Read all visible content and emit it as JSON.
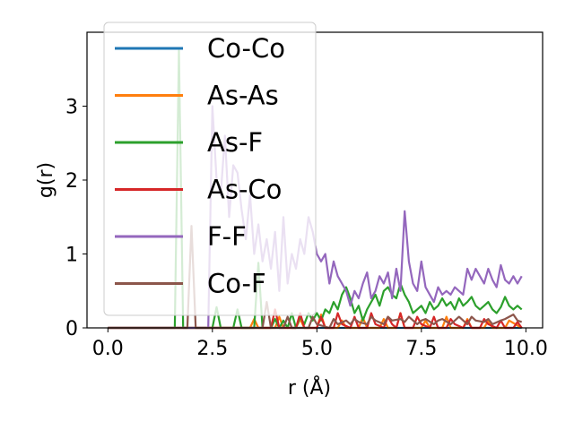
{
  "chart_data": {
    "type": "line",
    "xlabel": "r (Å)",
    "ylabel": "g(r)",
    "xlim": [
      -0.5,
      10.4
    ],
    "ylim": [
      0,
      4.0
    ],
    "x_ticks": [
      "0.0",
      "2.5",
      "5.0",
      "7.5",
      "10.0"
    ],
    "y_ticks": [
      "0",
      "1",
      "2",
      "3"
    ],
    "grid": false,
    "legend_position": "upper-left",
    "series": [
      {
        "name": "Co-Co",
        "color": "#1f77b4",
        "x": [
          0.0,
          9.9
        ],
        "y": [
          0.0,
          0.0
        ]
      },
      {
        "name": "As-As",
        "color": "#ff7f0e",
        "x": [
          0.0,
          3.4,
          3.5,
          3.6,
          4.0,
          4.1,
          4.2,
          4.5,
          4.6,
          4.7,
          5.0,
          5.1,
          5.2,
          5.5,
          5.6,
          5.7,
          6.0,
          6.1,
          6.2,
          6.5,
          6.6,
          6.7,
          6.9,
          7.0,
          7.1,
          7.5,
          7.6,
          7.7,
          8.0,
          8.1,
          8.2,
          8.5,
          8.6,
          8.7,
          9.0,
          9.1,
          9.2,
          9.5,
          9.6,
          9.9
        ],
        "y": [
          0.0,
          0.0,
          0.12,
          0.0,
          0.0,
          0.15,
          0.0,
          0.0,
          0.12,
          0.0,
          0.0,
          0.18,
          0.0,
          0.0,
          0.1,
          0.0,
          0.0,
          0.14,
          0.0,
          0.0,
          0.12,
          0.0,
          0.0,
          0.2,
          0.0,
          0.0,
          0.1,
          0.0,
          0.0,
          0.15,
          0.0,
          0.0,
          0.12,
          0.0,
          0.0,
          0.1,
          0.0,
          0.0,
          0.1,
          0.0
        ]
      },
      {
        "name": "As-F",
        "color": "#2ca02c",
        "x": [
          0.0,
          1.6,
          1.7,
          1.8,
          2.5,
          2.6,
          2.7,
          3.0,
          3.1,
          3.2,
          3.5,
          3.6,
          3.7,
          3.9,
          4.0,
          4.1,
          4.2,
          4.3,
          4.4,
          4.5,
          4.6,
          4.7,
          4.8,
          4.9,
          5.0,
          5.1,
          5.2,
          5.3,
          5.4,
          5.5,
          5.6,
          5.7,
          5.8,
          5.9,
          6.0,
          6.1,
          6.2,
          6.3,
          6.4,
          6.5,
          6.6,
          6.7,
          6.8,
          6.9,
          7.0,
          7.1,
          7.2,
          7.3,
          7.4,
          7.5,
          7.6,
          7.7,
          7.8,
          7.9,
          8.0,
          8.1,
          8.2,
          8.3,
          8.4,
          8.5,
          8.6,
          8.7,
          8.8,
          8.9,
          9.0,
          9.1,
          9.2,
          9.3,
          9.4,
          9.5,
          9.6,
          9.7,
          9.8,
          9.9
        ],
        "y": [
          0.0,
          0.0,
          3.75,
          0.0,
          0.0,
          0.28,
          0.0,
          0.0,
          0.25,
          0.0,
          0.0,
          0.88,
          0.0,
          0.0,
          0.12,
          0.0,
          0.1,
          0.0,
          0.2,
          0.0,
          0.15,
          0.05,
          0.2,
          0.1,
          0.2,
          0.1,
          0.25,
          0.2,
          0.35,
          0.25,
          0.45,
          0.55,
          0.4,
          0.2,
          0.3,
          0.1,
          0.25,
          0.35,
          0.45,
          0.3,
          0.5,
          0.55,
          0.45,
          0.4,
          0.6,
          0.45,
          0.35,
          0.2,
          0.25,
          0.3,
          0.2,
          0.35,
          0.25,
          0.3,
          0.4,
          0.3,
          0.35,
          0.25,
          0.4,
          0.3,
          0.35,
          0.42,
          0.3,
          0.25,
          0.3,
          0.35,
          0.25,
          0.2,
          0.28,
          0.42,
          0.3,
          0.25,
          0.3,
          0.25
        ]
      },
      {
        "name": "As-Co",
        "color": "#d62728",
        "x": [
          0.0,
          3.9,
          4.0,
          4.1,
          4.5,
          4.6,
          4.7,
          5.0,
          5.1,
          5.2,
          5.4,
          5.5,
          5.6,
          5.8,
          5.9,
          6.0,
          6.2,
          6.3,
          6.4,
          6.6,
          6.7,
          6.8,
          6.9,
          7.0,
          7.1,
          7.3,
          7.4,
          7.5,
          7.7,
          7.8,
          7.9,
          8.1,
          8.2,
          8.3,
          8.5,
          8.6,
          8.7,
          8.9,
          9.0,
          9.1,
          9.3,
          9.4,
          9.5,
          9.7,
          9.8,
          9.9
        ],
        "y": [
          0.0,
          0.0,
          0.25,
          0.0,
          0.0,
          0.2,
          0.0,
          0.0,
          0.15,
          0.0,
          0.0,
          0.2,
          0.05,
          0.0,
          0.15,
          0.0,
          0.0,
          0.2,
          0.05,
          0.0,
          0.15,
          0.05,
          0.0,
          0.2,
          0.0,
          0.0,
          0.15,
          0.05,
          0.0,
          0.15,
          0.0,
          0.0,
          0.12,
          0.05,
          0.0,
          0.1,
          0.0,
          0.0,
          0.12,
          0.05,
          0.0,
          0.1,
          0.0,
          0.0,
          0.08,
          0.0
        ]
      },
      {
        "name": "F-F",
        "color": "#9467bd",
        "x": [
          0.0,
          2.4,
          2.5,
          2.6,
          2.7,
          2.8,
          2.9,
          3.0,
          3.1,
          3.2,
          3.3,
          3.4,
          3.5,
          3.6,
          3.7,
          3.8,
          3.9,
          4.0,
          4.1,
          4.2,
          4.3,
          4.4,
          4.5,
          4.6,
          4.7,
          4.8,
          4.9,
          5.0,
          5.1,
          5.2,
          5.3,
          5.4,
          5.5,
          5.6,
          5.7,
          5.8,
          5.9,
          6.0,
          6.1,
          6.2,
          6.3,
          6.4,
          6.5,
          6.6,
          6.7,
          6.8,
          6.9,
          7.0,
          7.1,
          7.2,
          7.3,
          7.4,
          7.5,
          7.6,
          7.7,
          7.8,
          7.9,
          8.0,
          8.1,
          8.2,
          8.3,
          8.4,
          8.5,
          8.6,
          8.7,
          8.8,
          8.9,
          9.0,
          9.1,
          9.2,
          9.3,
          9.4,
          9.5,
          9.6,
          9.7,
          9.8,
          9.9
        ],
        "y": [
          0.0,
          0.0,
          3.0,
          2.0,
          1.8,
          2.6,
          1.5,
          2.2,
          2.1,
          1.6,
          1.2,
          1.8,
          1.0,
          1.4,
          0.9,
          1.2,
          0.8,
          1.3,
          0.5,
          1.5,
          0.6,
          1.0,
          0.8,
          1.2,
          1.0,
          1.5,
          1.3,
          1.0,
          0.9,
          1.0,
          0.6,
          0.9,
          0.7,
          0.6,
          0.5,
          0.3,
          0.5,
          0.4,
          0.6,
          0.75,
          0.4,
          0.5,
          0.7,
          0.6,
          0.75,
          0.4,
          0.8,
          0.5,
          1.58,
          0.9,
          0.6,
          0.5,
          0.9,
          0.55,
          0.45,
          0.35,
          0.55,
          0.45,
          0.5,
          0.45,
          0.55,
          0.5,
          0.45,
          0.8,
          0.65,
          0.8,
          0.7,
          0.6,
          0.8,
          0.65,
          0.55,
          0.85,
          0.65,
          0.6,
          0.7,
          0.6,
          0.7
        ]
      },
      {
        "name": "Co-F",
        "color": "#8c564b",
        "x": [
          0.0,
          1.9,
          2.0,
          2.1,
          3.7,
          3.8,
          3.9,
          4.2,
          4.3,
          4.4,
          4.8,
          4.9,
          5.0,
          5.3,
          5.4,
          5.5,
          5.7,
          5.8,
          5.9,
          6.0,
          6.2,
          6.3,
          6.4,
          6.6,
          6.7,
          6.8,
          7.0,
          7.1,
          7.2,
          7.4,
          7.5,
          7.6,
          7.8,
          7.9,
          8.0,
          8.2,
          8.3,
          8.4,
          8.6,
          8.7,
          8.8,
          9.0,
          9.1,
          9.2,
          9.4,
          9.5,
          9.6,
          9.7,
          9.8,
          9.9
        ],
        "y": [
          0.0,
          0.0,
          1.38,
          0.0,
          0.0,
          0.35,
          0.0,
          0.0,
          0.15,
          0.0,
          0.0,
          0.15,
          0.05,
          0.0,
          0.12,
          0.05,
          0.1,
          0.05,
          0.12,
          0.08,
          0.05,
          0.15,
          0.1,
          0.05,
          0.15,
          0.1,
          0.12,
          0.08,
          0.15,
          0.05,
          0.1,
          0.12,
          0.05,
          0.1,
          0.12,
          0.05,
          0.1,
          0.15,
          0.05,
          0.15,
          0.1,
          0.08,
          0.12,
          0.05,
          0.1,
          0.12,
          0.15,
          0.18,
          0.1,
          0.08
        ]
      }
    ]
  }
}
